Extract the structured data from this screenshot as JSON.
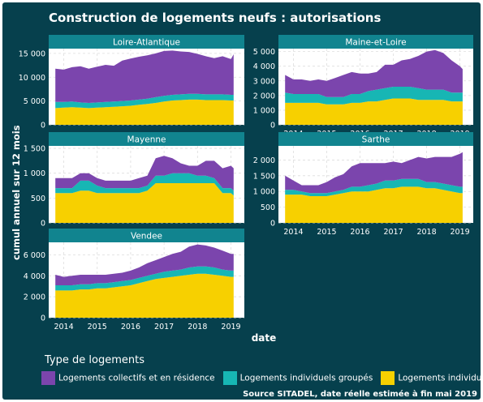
{
  "title": "Construction de logements neufs : autorisations",
  "legend_title": "Type de logements",
  "source": "Source SITADEL, date réelle estimée à fin mai 2019",
  "chart_data": {
    "type": "area",
    "stacked": true,
    "title": "Construction de logements neufs : autorisations",
    "xlabel": "date",
    "ylabel": "cumul annuel sur 12 mois",
    "x_range": [
      2013.55,
      2019.4
    ],
    "x_ticks": [
      2014,
      2015,
      2016,
      2017,
      2018,
      2019
    ],
    "x_tick_labels": [
      "2014",
      "2015",
      "2016",
      "2017",
      "2018",
      "2019"
    ],
    "legend_position": "bottom",
    "series_meta": [
      {
        "name": "Logements collectifs et en résidence",
        "color": "#7b45ad"
      },
      {
        "name": "Logements individuels groupés",
        "color": "#17b6b4"
      },
      {
        "name": "Logements individuels purs",
        "color": "#f7d000"
      }
    ],
    "x": [
      2013.75,
      2014.0,
      2014.25,
      2014.5,
      2014.75,
      2015.0,
      2015.25,
      2015.5,
      2015.75,
      2016.0,
      2016.25,
      2016.5,
      2016.75,
      2017.0,
      2017.25,
      2017.5,
      2017.75,
      2018.0,
      2018.25,
      2018.5,
      2018.75,
      2019.0,
      2019.08
    ],
    "panels": [
      {
        "name": "Loire-Atlantique",
        "ylim": [
          0,
          16000
        ],
        "ticks": [
          0,
          5000,
          10000,
          15000
        ],
        "tick_labels": [
          "0",
          "5 000",
          "10 000",
          "15 000"
        ],
        "series": [
          {
            "name": "Logements individuels purs",
            "values": [
              3500,
              3600,
              3700,
              3600,
              3500,
              3600,
              3700,
              3800,
              3900,
              4000,
              4200,
              4400,
              4600,
              4900,
              5100,
              5200,
              5300,
              5300,
              5200,
              5200,
              5200,
              5100,
              5100
            ]
          },
          {
            "name": "Logements individuels groupés",
            "values": [
              1300,
              1200,
              1200,
              1100,
              1100,
              1100,
              1100,
              1100,
              1100,
              1100,
              1100,
              1100,
              1200,
              1200,
              1200,
              1200,
              1200,
              1200,
              1200,
              1200,
              1200,
              1200,
              1200
            ]
          },
          {
            "name": "Logements collectifs et en résidence",
            "values": [
              7000,
              6800,
              7200,
              7600,
              7200,
              7500,
              7800,
              7500,
              8500,
              8800,
              9000,
              9100,
              9200,
              9400,
              9300,
              9000,
              8800,
              8400,
              8000,
              7600,
              8000,
              7500,
              8500
            ]
          }
        ]
      },
      {
        "name": "Maine-et-Loire",
        "ylim": [
          0,
          5200
        ],
        "ticks": [
          0,
          1000,
          2000,
          3000,
          4000,
          5000
        ],
        "tick_labels": [
          "0",
          "1 000",
          "2 000",
          "3 000",
          "4 000",
          "5 000"
        ],
        "series": [
          {
            "name": "Logements individuels purs",
            "values": [
              1500,
              1500,
              1500,
              1500,
              1500,
              1400,
              1400,
              1400,
              1500,
              1500,
              1600,
              1600,
              1700,
              1800,
              1800,
              1800,
              1700,
              1700,
              1700,
              1700,
              1600,
              1600,
              1600
            ]
          },
          {
            "name": "Logements individuels groupés",
            "values": [
              700,
              600,
              600,
              600,
              600,
              500,
              500,
              500,
              600,
              600,
              700,
              800,
              800,
              800,
              800,
              800,
              800,
              700,
              700,
              700,
              600,
              600,
              600
            ]
          },
          {
            "name": "Logements collectifs et en résidence",
            "values": [
              1200,
              1000,
              1000,
              900,
              1000,
              1100,
              1300,
              1500,
              1500,
              1400,
              1200,
              1200,
              1600,
              1500,
              1800,
              1900,
              2200,
              2600,
              2700,
              2500,
              2200,
              1800,
              1600
            ]
          }
        ]
      },
      {
        "name": "Mayenne",
        "ylim": [
          0,
          1550
        ],
        "ticks": [
          0,
          500,
          1000,
          1500
        ],
        "tick_labels": [
          "0",
          "500",
          "1 000",
          "1 500"
        ],
        "series": [
          {
            "name": "Logements individuels purs",
            "values": [
              600,
              600,
              600,
              650,
              650,
              600,
              600,
              600,
              600,
              600,
              600,
              650,
              800,
              800,
              800,
              800,
              800,
              800,
              800,
              800,
              600,
              600,
              550
            ]
          },
          {
            "name": "Logements individuels groupés",
            "values": [
              100,
              100,
              100,
              200,
              200,
              150,
              100,
              100,
              100,
              100,
              100,
              100,
              150,
              150,
              200,
              200,
              200,
              150,
              150,
              100,
              100,
              100,
              100
            ]
          },
          {
            "name": "Logements collectifs et en résidence",
            "values": [
              200,
              200,
              200,
              150,
              150,
              150,
              150,
              150,
              150,
              150,
              200,
              200,
              350,
              400,
              300,
              200,
              150,
              200,
              300,
              350,
              400,
              450,
              450
            ]
          }
        ]
      },
      {
        "name": "Sarthe",
        "ylim": [
          0,
          2450
        ],
        "ticks": [
          0,
          500,
          1000,
          1500,
          2000
        ],
        "tick_labels": [
          "0",
          "500",
          "1 000",
          "1 500",
          "2 000"
        ],
        "series": [
          {
            "name": "Logements individuels purs",
            "values": [
              900,
              900,
              900,
              850,
              850,
              850,
              900,
              950,
              1000,
              1000,
              1000,
              1050,
              1100,
              1100,
              1150,
              1150,
              1150,
              1100,
              1100,
              1050,
              1000,
              950,
              950
            ]
          },
          {
            "name": "Logements individuels groupés",
            "values": [
              150,
              150,
              100,
              100,
              100,
              100,
              100,
              100,
              150,
              150,
              200,
              200,
              250,
              250,
              250,
              250,
              250,
              200,
              200,
              200,
              200,
              200,
              200
            ]
          },
          {
            "name": "Logements collectifs et en résidence",
            "values": [
              450,
              300,
              200,
              250,
              250,
              350,
              450,
              500,
              650,
              750,
              700,
              650,
              550,
              600,
              500,
              600,
              700,
              750,
              800,
              850,
              900,
              1050,
              1100
            ]
          }
        ]
      },
      {
        "name": "Vendee",
        "ylim": [
          0,
          7200
        ],
        "ticks": [
          0,
          2000,
          4000,
          6000
        ],
        "tick_labels": [
          "0",
          "2 000",
          "4 000",
          "6 000"
        ],
        "series": [
          {
            "name": "Logements individuels purs",
            "values": [
              2600,
              2600,
              2600,
              2700,
              2700,
              2800,
              2800,
              2900,
              3000,
              3100,
              3300,
              3500,
              3700,
              3800,
              3900,
              4000,
              4100,
              4200,
              4200,
              4100,
              4000,
              3900,
              3900
            ]
          },
          {
            "name": "Logements individuels groupés",
            "values": [
              500,
              500,
              500,
              500,
              500,
              500,
              500,
              500,
              500,
              500,
              500,
              500,
              500,
              600,
              600,
              600,
              700,
              700,
              700,
              700,
              600,
              600,
              600
            ]
          },
          {
            "name": "Logements collectifs et en résidence",
            "values": [
              1000,
              800,
              900,
              900,
              900,
              800,
              800,
              800,
              800,
              900,
              1000,
              1200,
              1300,
              1400,
              1600,
              1700,
              2000,
              2100,
              2000,
              1900,
              1800,
              1600,
              1600
            ]
          }
        ]
      }
    ]
  }
}
